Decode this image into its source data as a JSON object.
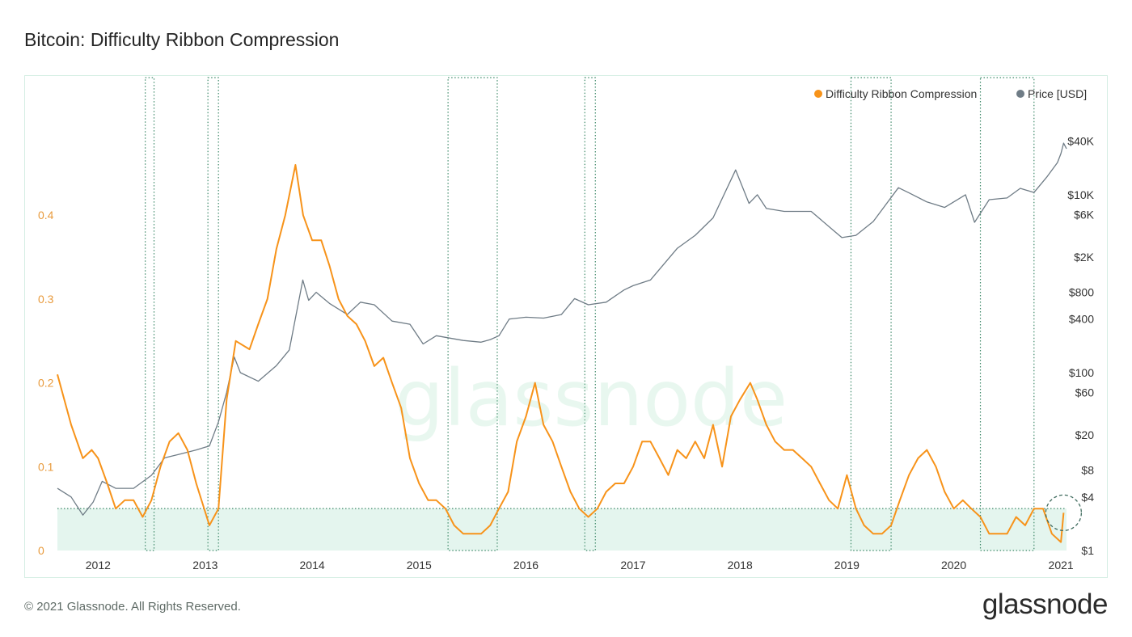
{
  "header": {
    "title": "Bitcoin: Difficulty Ribbon Compression"
  },
  "footer": {
    "copyright": "© 2021 Glassnode. All Rights Reserved.",
    "brand": "glassnode"
  },
  "watermark": "glassnode",
  "colors": {
    "ribbon": "#f7931a",
    "price": "#6f7c86",
    "zone_fill": "#e4f5ee",
    "zone_line": "#3f8a6a",
    "axis_left": "#e89a3c",
    "border": "#d5eee3"
  },
  "chart_data": {
    "type": "line",
    "x_ticks": [
      "2012",
      "2013",
      "2014",
      "2015",
      "2016",
      "2017",
      "2018",
      "2019",
      "2020",
      "2021"
    ],
    "y_left": {
      "ticks": [
        0,
        0.1,
        0.2,
        0.3,
        0.4
      ],
      "tick_labels": [
        "0",
        "0.1",
        "0.2",
        "0.3",
        "0.4"
      ],
      "range": [
        0,
        0.46
      ]
    },
    "y_right": {
      "scale": "log",
      "ticks": [
        1,
        4,
        8,
        20,
        60,
        100,
        400,
        800,
        2000,
        6000,
        10000,
        40000
      ],
      "tick_labels": [
        "$1",
        "$4",
        "$8",
        "$20",
        "$60",
        "$100",
        "$400",
        "$800",
        "$2K",
        "$6K",
        "$10K",
        "$40K"
      ],
      "range": [
        1,
        50000
      ]
    },
    "threshold": 0.05,
    "highlight_periods": [
      [
        "2012-06-10",
        "2012-07-10"
      ],
      [
        "2013-01-10",
        "2013-02-15"
      ],
      [
        "2015-04-10",
        "2015-09-25"
      ],
      [
        "2016-07-20",
        "2016-08-25"
      ],
      [
        "2019-01-15",
        "2019-06-01"
      ],
      [
        "2020-04-01",
        "2020-10-01"
      ]
    ],
    "current_marker": {
      "date": "2021-01-10",
      "value": 0.045
    },
    "series": [
      {
        "name": "Difficulty Ribbon Compression",
        "axis": "left",
        "points": [
          [
            "2011-08-15",
            0.21
          ],
          [
            "2011-10-01",
            0.15
          ],
          [
            "2011-11-10",
            0.11
          ],
          [
            "2011-12-10",
            0.12
          ],
          [
            "2012-01-01",
            0.11
          ],
          [
            "2012-02-01",
            0.08
          ],
          [
            "2012-03-01",
            0.05
          ],
          [
            "2012-04-01",
            0.06
          ],
          [
            "2012-05-01",
            0.06
          ],
          [
            "2012-06-01",
            0.04
          ],
          [
            "2012-07-01",
            0.06
          ],
          [
            "2012-08-01",
            0.1
          ],
          [
            "2012-09-01",
            0.13
          ],
          [
            "2012-10-01",
            0.14
          ],
          [
            "2012-11-01",
            0.12
          ],
          [
            "2012-12-01",
            0.08
          ],
          [
            "2013-01-15",
            0.03
          ],
          [
            "2013-02-15",
            0.05
          ],
          [
            "2013-03-15",
            0.18
          ],
          [
            "2013-04-15",
            0.25
          ],
          [
            "2013-06-01",
            0.24
          ],
          [
            "2013-07-01",
            0.27
          ],
          [
            "2013-08-01",
            0.3
          ],
          [
            "2013-09-01",
            0.36
          ],
          [
            "2013-10-01",
            0.4
          ],
          [
            "2013-11-05",
            0.46
          ],
          [
            "2013-12-01",
            0.4
          ],
          [
            "2014-01-01",
            0.37
          ],
          [
            "2014-02-01",
            0.37
          ],
          [
            "2014-03-01",
            0.34
          ],
          [
            "2014-04-01",
            0.3
          ],
          [
            "2014-05-01",
            0.28
          ],
          [
            "2014-06-01",
            0.27
          ],
          [
            "2014-07-01",
            0.25
          ],
          [
            "2014-08-01",
            0.22
          ],
          [
            "2014-09-01",
            0.23
          ],
          [
            "2014-10-01",
            0.2
          ],
          [
            "2014-11-01",
            0.17
          ],
          [
            "2014-12-01",
            0.11
          ],
          [
            "2015-01-01",
            0.08
          ],
          [
            "2015-02-01",
            0.06
          ],
          [
            "2015-03-01",
            0.06
          ],
          [
            "2015-04-01",
            0.05
          ],
          [
            "2015-05-01",
            0.03
          ],
          [
            "2015-06-01",
            0.02
          ],
          [
            "2015-07-01",
            0.02
          ],
          [
            "2015-08-01",
            0.02
          ],
          [
            "2015-09-01",
            0.03
          ],
          [
            "2015-10-01",
            0.05
          ],
          [
            "2015-11-01",
            0.07
          ],
          [
            "2015-12-01",
            0.13
          ],
          [
            "2016-01-01",
            0.16
          ],
          [
            "2016-02-01",
            0.2
          ],
          [
            "2016-03-01",
            0.15
          ],
          [
            "2016-04-01",
            0.13
          ],
          [
            "2016-05-01",
            0.1
          ],
          [
            "2016-06-01",
            0.07
          ],
          [
            "2016-07-01",
            0.05
          ],
          [
            "2016-08-01",
            0.04
          ],
          [
            "2016-09-01",
            0.05
          ],
          [
            "2016-10-01",
            0.07
          ],
          [
            "2016-11-01",
            0.08
          ],
          [
            "2016-12-01",
            0.08
          ],
          [
            "2017-01-01",
            0.1
          ],
          [
            "2017-02-01",
            0.13
          ],
          [
            "2017-03-01",
            0.13
          ],
          [
            "2017-04-01",
            0.11
          ],
          [
            "2017-05-01",
            0.09
          ],
          [
            "2017-06-01",
            0.12
          ],
          [
            "2017-07-01",
            0.11
          ],
          [
            "2017-08-01",
            0.13
          ],
          [
            "2017-09-01",
            0.11
          ],
          [
            "2017-10-01",
            0.15
          ],
          [
            "2017-11-01",
            0.1
          ],
          [
            "2017-12-01",
            0.16
          ],
          [
            "2018-01-01",
            0.18
          ],
          [
            "2018-02-05",
            0.2
          ],
          [
            "2018-03-01",
            0.18
          ],
          [
            "2018-04-01",
            0.15
          ],
          [
            "2018-05-01",
            0.13
          ],
          [
            "2018-06-01",
            0.12
          ],
          [
            "2018-07-01",
            0.12
          ],
          [
            "2018-08-01",
            0.11
          ],
          [
            "2018-09-01",
            0.1
          ],
          [
            "2018-10-01",
            0.08
          ],
          [
            "2018-11-01",
            0.06
          ],
          [
            "2018-12-01",
            0.05
          ],
          [
            "2019-01-01",
            0.09
          ],
          [
            "2019-02-01",
            0.05
          ],
          [
            "2019-03-01",
            0.03
          ],
          [
            "2019-04-01",
            0.02
          ],
          [
            "2019-05-01",
            0.02
          ],
          [
            "2019-06-01",
            0.03
          ],
          [
            "2019-07-01",
            0.06
          ],
          [
            "2019-08-01",
            0.09
          ],
          [
            "2019-09-01",
            0.11
          ],
          [
            "2019-10-01",
            0.12
          ],
          [
            "2019-11-01",
            0.1
          ],
          [
            "2019-12-01",
            0.07
          ],
          [
            "2020-01-01",
            0.05
          ],
          [
            "2020-02-01",
            0.06
          ],
          [
            "2020-03-01",
            0.05
          ],
          [
            "2020-04-01",
            0.04
          ],
          [
            "2020-05-01",
            0.02
          ],
          [
            "2020-06-01",
            0.02
          ],
          [
            "2020-07-01",
            0.02
          ],
          [
            "2020-08-01",
            0.04
          ],
          [
            "2020-09-01",
            0.03
          ],
          [
            "2020-10-01",
            0.05
          ],
          [
            "2020-11-01",
            0.05
          ],
          [
            "2020-12-01",
            0.02
          ],
          [
            "2021-01-01",
            0.01
          ],
          [
            "2021-01-10",
            0.045
          ]
        ]
      },
      {
        "name": "Price [USD]",
        "axis": "right",
        "points": [
          [
            "2011-08-15",
            5
          ],
          [
            "2011-10-01",
            4
          ],
          [
            "2011-11-10",
            2.5
          ],
          [
            "2011-12-15",
            3.5
          ],
          [
            "2012-01-15",
            6
          ],
          [
            "2012-03-01",
            5
          ],
          [
            "2012-05-01",
            5
          ],
          [
            "2012-07-01",
            7
          ],
          [
            "2012-08-15",
            11
          ],
          [
            "2012-10-01",
            12
          ],
          [
            "2012-12-01",
            13.5
          ],
          [
            "2013-01-15",
            15
          ],
          [
            "2013-02-15",
            28
          ],
          [
            "2013-03-15",
            60
          ],
          [
            "2013-04-10",
            150
          ],
          [
            "2013-05-01",
            100
          ],
          [
            "2013-07-01",
            80
          ],
          [
            "2013-09-01",
            120
          ],
          [
            "2013-10-15",
            180
          ],
          [
            "2013-11-30",
            1100
          ],
          [
            "2013-12-20",
            650
          ],
          [
            "2014-01-15",
            800
          ],
          [
            "2014-03-01",
            600
          ],
          [
            "2014-05-01",
            450
          ],
          [
            "2014-06-15",
            620
          ],
          [
            "2014-08-01",
            580
          ],
          [
            "2014-10-01",
            380
          ],
          [
            "2014-12-01",
            350
          ],
          [
            "2015-01-15",
            210
          ],
          [
            "2015-03-01",
            260
          ],
          [
            "2015-06-01",
            230
          ],
          [
            "2015-08-01",
            220
          ],
          [
            "2015-09-01",
            235
          ],
          [
            "2015-10-01",
            260
          ],
          [
            "2015-11-05",
            400
          ],
          [
            "2016-01-01",
            420
          ],
          [
            "2016-03-01",
            410
          ],
          [
            "2016-05-01",
            450
          ],
          [
            "2016-06-15",
            680
          ],
          [
            "2016-08-01",
            580
          ],
          [
            "2016-10-01",
            620
          ],
          [
            "2016-12-01",
            850
          ],
          [
            "2017-01-01",
            950
          ],
          [
            "2017-03-01",
            1100
          ],
          [
            "2017-06-01",
            2500
          ],
          [
            "2017-08-01",
            3500
          ],
          [
            "2017-10-01",
            5500
          ],
          [
            "2017-12-17",
            19000
          ],
          [
            "2018-02-01",
            8000
          ],
          [
            "2018-03-01",
            10000
          ],
          [
            "2018-04-01",
            7000
          ],
          [
            "2018-06-01",
            6500
          ],
          [
            "2018-09-01",
            6500
          ],
          [
            "2018-11-15",
            4000
          ],
          [
            "2018-12-15",
            3300
          ],
          [
            "2019-02-01",
            3500
          ],
          [
            "2019-04-01",
            5000
          ],
          [
            "2019-06-26",
            12000
          ],
          [
            "2019-08-01",
            10500
          ],
          [
            "2019-10-01",
            8300
          ],
          [
            "2019-12-01",
            7200
          ],
          [
            "2020-02-10",
            10000
          ],
          [
            "2020-03-12",
            4900
          ],
          [
            "2020-05-01",
            8800
          ],
          [
            "2020-07-01",
            9200
          ],
          [
            "2020-08-15",
            11800
          ],
          [
            "2020-10-01",
            10600
          ],
          [
            "2020-11-15",
            16000
          ],
          [
            "2020-12-20",
            23000
          ],
          [
            "2021-01-01",
            29000
          ],
          [
            "2021-01-10",
            38000
          ],
          [
            "2021-01-20",
            33000
          ]
        ]
      }
    ]
  }
}
